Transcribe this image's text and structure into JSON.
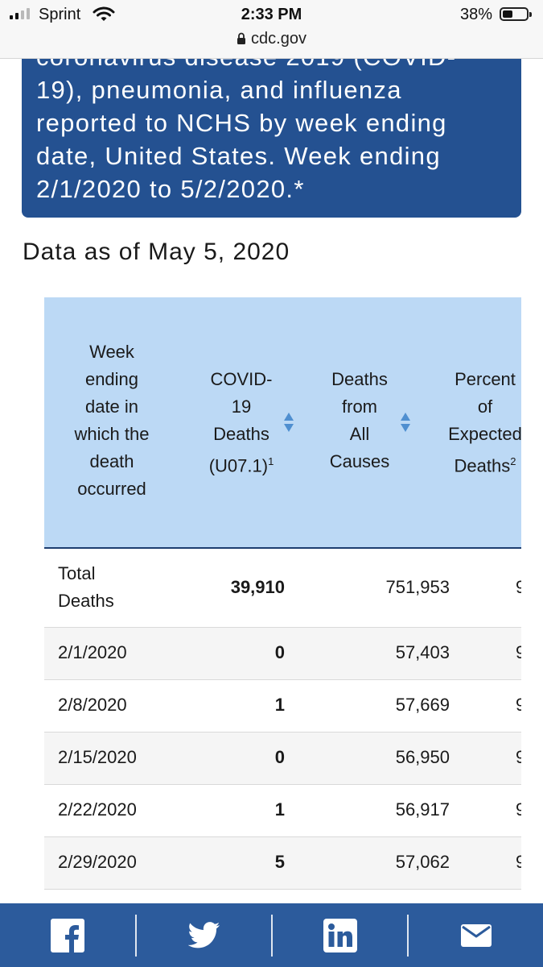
{
  "status_bar": {
    "carrier": "Sprint",
    "time": "2:33 PM",
    "battery_percent": "38%",
    "url": "cdc.gov"
  },
  "title_box": {
    "text": "coronavirus disease 2019 (COVID-\n19), pneumonia, and influenza\nreported to NCHS by week ending\ndate, United States. Week ending\n2/1/2020 to 5/2/2020.*"
  },
  "data_as_of": "Data as of May 5, 2020",
  "table": {
    "headers": {
      "week": "Week\nending\ndate in\nwhich the\ndeath\noccurred",
      "covid": "COVID-\n19\nDeaths\n(U07.1)",
      "covid_sup": "1",
      "all_causes": "Deaths\nfrom\nAll\nCauses",
      "percent": "Percent\nof\nExpected\nDeaths",
      "percent_sup": "2"
    },
    "rows": [
      {
        "week": "Total\nDeaths",
        "covid": "39,910",
        "all_causes": "751,953",
        "percent": "9"
      },
      {
        "week": "2/1/2020",
        "covid": "0",
        "all_causes": "57,403",
        "percent": "9"
      },
      {
        "week": "2/8/2020",
        "covid": "1",
        "all_causes": "57,669",
        "percent": "9"
      },
      {
        "week": "2/15/2020",
        "covid": "0",
        "all_causes": "56,950",
        "percent": "9"
      },
      {
        "week": "2/22/2020",
        "covid": "1",
        "all_causes": "56,917",
        "percent": "9"
      },
      {
        "week": "2/29/2020",
        "covid": "5",
        "all_causes": "57,062",
        "percent": "9"
      }
    ]
  },
  "share_bar": {
    "buttons": [
      "facebook-icon",
      "twitter-icon",
      "linkedin-icon",
      "email-icon"
    ]
  },
  "colors": {
    "title_box": "#245191",
    "table_header": "#bcd9f5",
    "share_bar": "#2c5b9c",
    "sort_arrow": "#4f8fd0"
  }
}
